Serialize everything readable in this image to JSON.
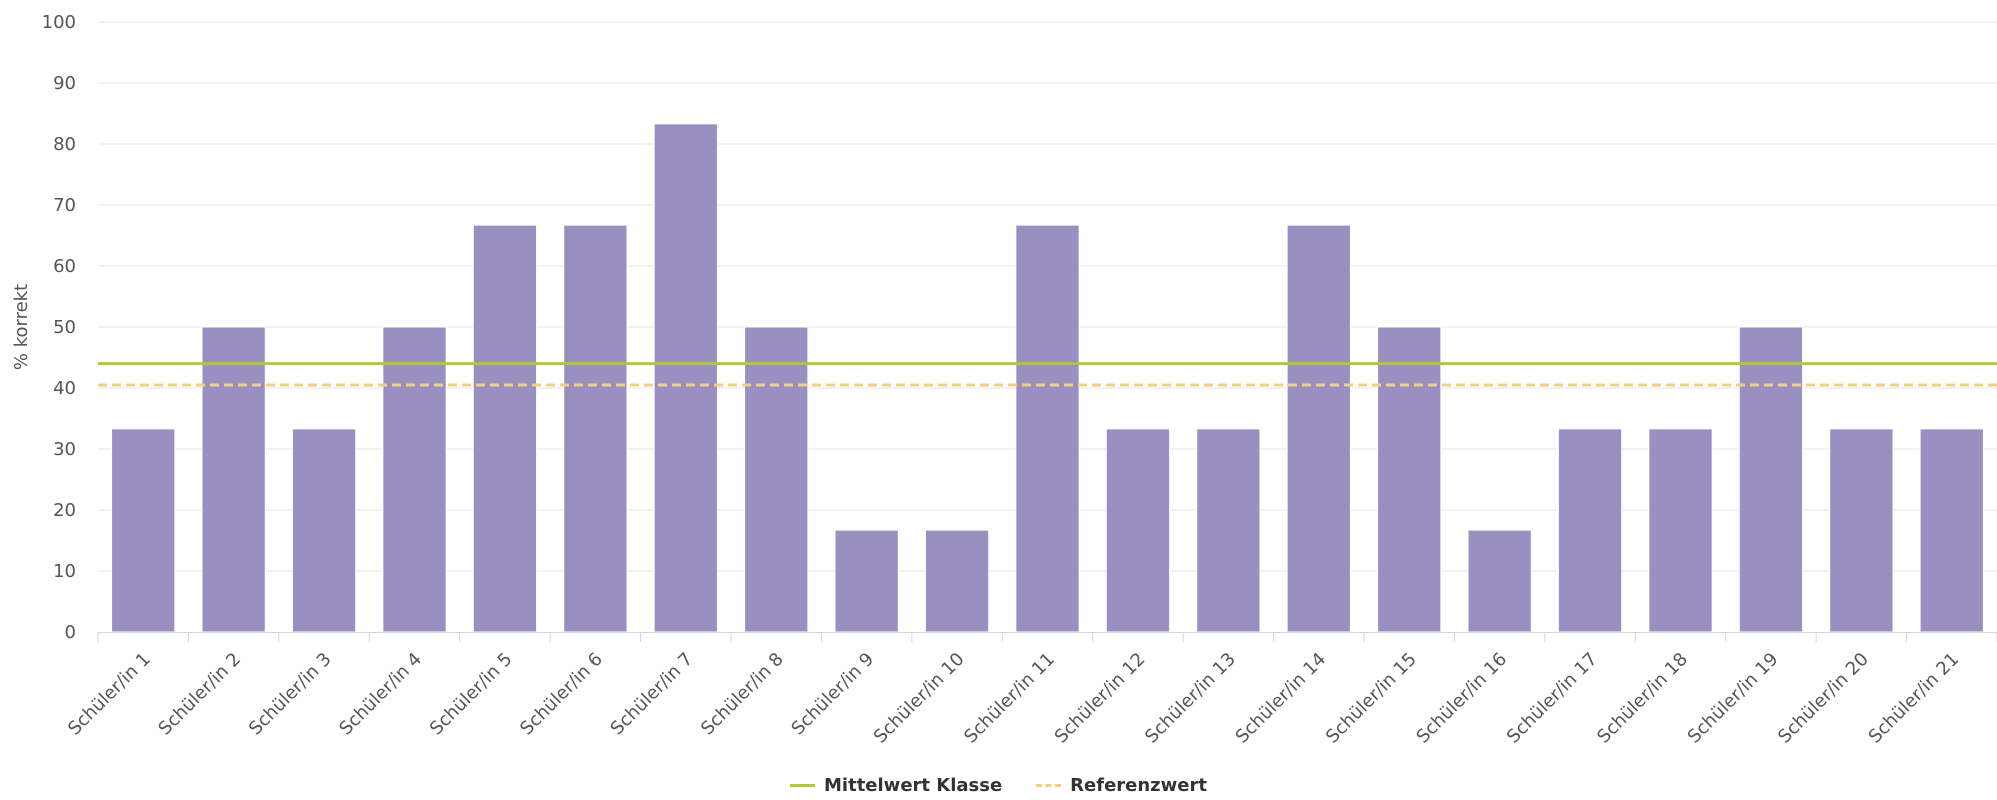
{
  "chart_data": {
    "type": "bar",
    "title": "",
    "xlabel": "",
    "ylabel": "% korrekt",
    "ylim": [
      0,
      100
    ],
    "yticks": [
      0,
      10,
      20,
      30,
      40,
      50,
      60,
      70,
      80,
      90,
      100
    ],
    "grid": true,
    "categories": [
      "Schüler/in 1",
      "Schüler/in 2",
      "Schüler/in 3",
      "Schüler/in 4",
      "Schüler/in 5",
      "Schüler/in 6",
      "Schüler/in 7",
      "Schüler/in 8",
      "Schüler/in 9",
      "Schüler/in 10",
      "Schüler/in 11",
      "Schüler/in 12",
      "Schüler/in 13",
      "Schüler/in 14",
      "Schüler/in 15",
      "Schüler/in 16",
      "Schüler/in 17",
      "Schüler/in 18",
      "Schüler/in 19",
      "Schüler/in 20",
      "Schüler/in 21"
    ],
    "values": [
      33.3,
      50,
      33.3,
      50,
      66.7,
      66.7,
      83.3,
      50,
      16.7,
      16.7,
      66.7,
      33.3,
      33.3,
      66.7,
      50,
      16.7,
      33.3,
      33.3,
      50,
      33.3,
      33.3
    ],
    "bar_color": "#9990c1",
    "reference_lines": [
      {
        "name": "Mittelwert Klasse",
        "value": 44,
        "color": "#b2c835",
        "style": "solid"
      },
      {
        "name": "Referenzwert",
        "value": 40.5,
        "color": "#f4cf80",
        "style": "dashed"
      }
    ],
    "legend_placement": "bottom-center"
  }
}
